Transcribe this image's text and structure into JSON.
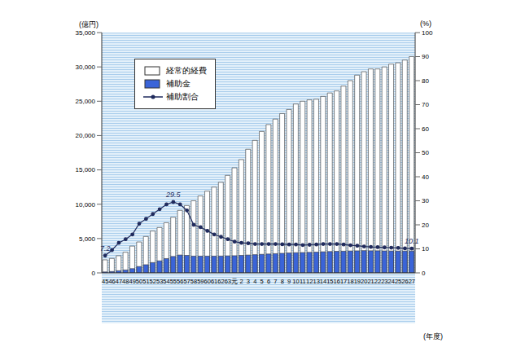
{
  "chart_data": {
    "type": "bar",
    "x_label": "(年度)",
    "y_label": "(億円)",
    "y2_label": "(%)",
    "categories": [
      "45",
      "46",
      "47",
      "48",
      "49",
      "50",
      "51",
      "52",
      "53",
      "54",
      "55",
      "56",
      "57",
      "58",
      "59",
      "60",
      "61",
      "62",
      "63",
      "元",
      "2",
      "3",
      "4",
      "5",
      "6",
      "7",
      "8",
      "9",
      "10",
      "11",
      "12",
      "13",
      "14",
      "15",
      "16",
      "17",
      "18",
      "19",
      "20",
      "21",
      "22",
      "23",
      "24",
      "25",
      "26",
      "27"
    ],
    "series": [
      {
        "name": "経常的経費",
        "type": "bar",
        "color": "#ffffff",
        "values": [
          1900,
          2100,
          2500,
          3000,
          3900,
          4500,
          5300,
          6100,
          6600,
          7300,
          8100,
          9100,
          9800,
          10500,
          11200,
          11900,
          12500,
          13200,
          14200,
          15300,
          16500,
          18000,
          19300,
          20600,
          21600,
          22400,
          23200,
          23800,
          24600,
          25000,
          25200,
          25300,
          25700,
          26200,
          26500,
          27200,
          28000,
          28800,
          29300,
          29700,
          29700,
          30000,
          30400,
          30600,
          31000,
          31500
        ]
      },
      {
        "name": "補助金",
        "type": "bar",
        "color": "#3a64d8",
        "values": [
          140,
          200,
          310,
          420,
          620,
          920,
          1190,
          1500,
          1750,
          2080,
          2390,
          2600,
          2550,
          2440,
          2440,
          2440,
          2440,
          2450,
          2480,
          2500,
          2550,
          2600,
          2650,
          2700,
          2750,
          2800,
          2850,
          2900,
          2940,
          2960,
          2990,
          3020,
          3070,
          3110,
          3140,
          3160,
          3190,
          3210,
          3240,
          3220,
          3220,
          3200,
          3190,
          3180,
          3180,
          3180
        ]
      },
      {
        "name": "補助割合",
        "type": "line",
        "axis": "y2",
        "color": "#1f2a5c",
        "marker": "circle",
        "values": [
          7.2,
          9.5,
          12.5,
          14,
          16,
          20.5,
          22.5,
          24.5,
          26.5,
          28.5,
          29.5,
          28.5,
          26,
          20,
          19,
          17.5,
          16,
          15,
          14,
          13,
          12.5,
          12.3,
          12,
          12,
          12,
          12,
          11.9,
          11.8,
          11.8,
          11.6,
          11.7,
          11.8,
          12,
          12,
          12,
          11.8,
          11.5,
          11.3,
          11,
          10.8,
          10.7,
          10.6,
          10.5,
          10.4,
          10.2,
          10.1
        ],
        "value_labels": [
          "7.2",
          null,
          null,
          null,
          null,
          null,
          null,
          null,
          null,
          null,
          "29.5",
          null,
          null,
          null,
          null,
          null,
          null,
          null,
          null,
          null,
          null,
          null,
          null,
          null,
          null,
          null,
          null,
          null,
          null,
          null,
          null,
          null,
          null,
          null,
          null,
          null,
          null,
          null,
          null,
          null,
          null,
          null,
          null,
          null,
          null,
          "10.1"
        ]
      }
    ],
    "ylim": [
      0,
      35000
    ],
    "yticks": [
      0,
      {
        "value": 5000,
        "label": "5,000"
      },
      {
        "value": 10000,
        "label": "10,000"
      },
      {
        "value": 15000,
        "label": "15,000"
      },
      {
        "value": 20000,
        "label": "20,000"
      },
      {
        "value": 25000,
        "label": "25,000"
      },
      {
        "value": 30000,
        "label": "30,000"
      },
      {
        "value": 35000,
        "label": "35,000"
      }
    ],
    "y2lim": [
      0,
      100
    ],
    "y2ticks": [
      0,
      10,
      20,
      30,
      40,
      50,
      60,
      70,
      80,
      90,
      100
    ],
    "grid": false,
    "legend": "upper left"
  }
}
